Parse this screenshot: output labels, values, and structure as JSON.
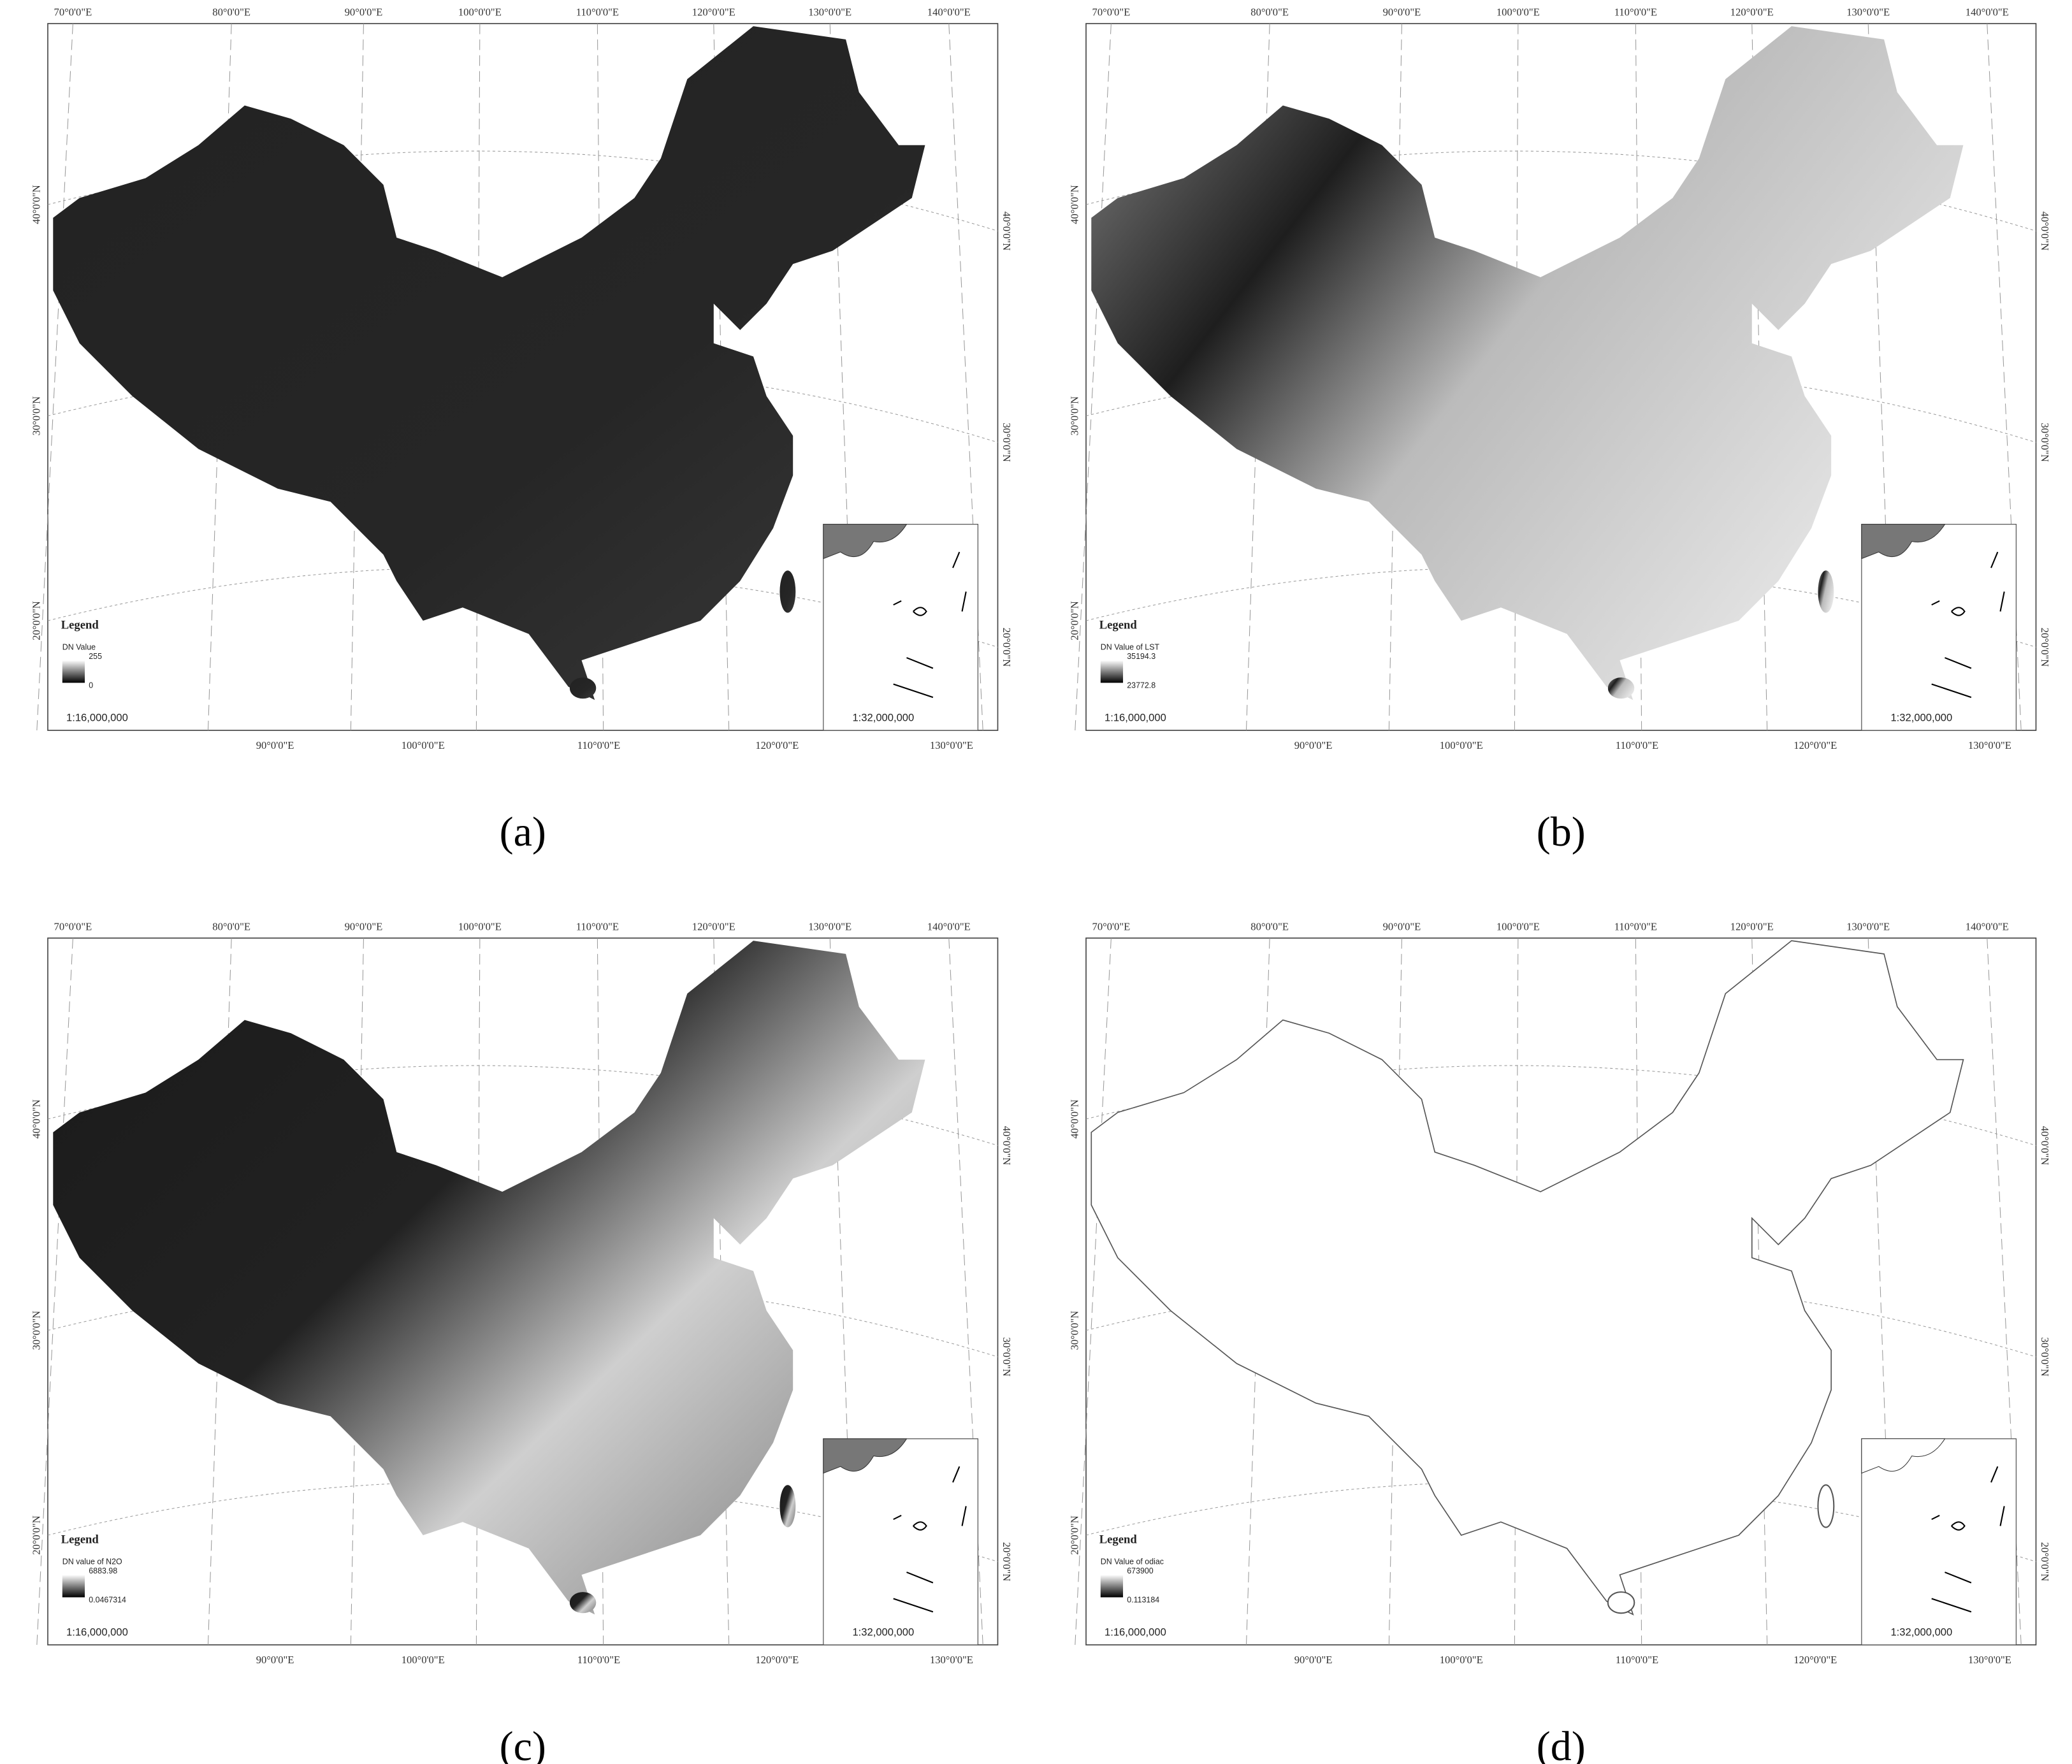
{
  "graticule": {
    "top": [
      "70°0'0\"E",
      "80°0'0\"E",
      "90°0'0\"E",
      "100°0'0\"E",
      "110°0'0\"E",
      "120°0'0\"E",
      "130°0'0\"E",
      "140°0'0\"E"
    ],
    "bottom": [
      "90°0'0\"E",
      "100°0'0\"E",
      "110°0'0\"E",
      "120°0'0\"E",
      "130°0'0\"E"
    ],
    "left": [
      "40°0'0\"N",
      "30°0'0\"N",
      "20°0'0\"N"
    ],
    "right": [
      "40°0'0\"N",
      "30°0'0\"N",
      "20°0'0\"N"
    ]
  },
  "panels": [
    {
      "label": "(a)",
      "legend_title": "Legend",
      "legend_name": "DN Value",
      "max": "255",
      "min": "0",
      "scale": "1:16,000,000",
      "inset_scale": "1:32,000,000"
    },
    {
      "label": "(b)",
      "legend_title": "Legend",
      "legend_name": "DN Value of LST",
      "max": "35194.3",
      "min": "23772.8",
      "scale": "1:16,000,000",
      "inset_scale": "1:32,000,000"
    },
    {
      "label": "(c)",
      "legend_title": "Legend",
      "legend_name": "DN value of N2O",
      "max": "6883.98",
      "min": "0.0467314",
      "scale": "1:16,000,000",
      "inset_scale": "1:32,000,000"
    },
    {
      "label": "(d)",
      "legend_title": "Legend",
      "legend_name": "DN Value of odiac",
      "max": "673900",
      "min": "0.113184",
      "scale": "1:16,000,000",
      "inset_scale": "1:32,000,000"
    }
  ]
}
